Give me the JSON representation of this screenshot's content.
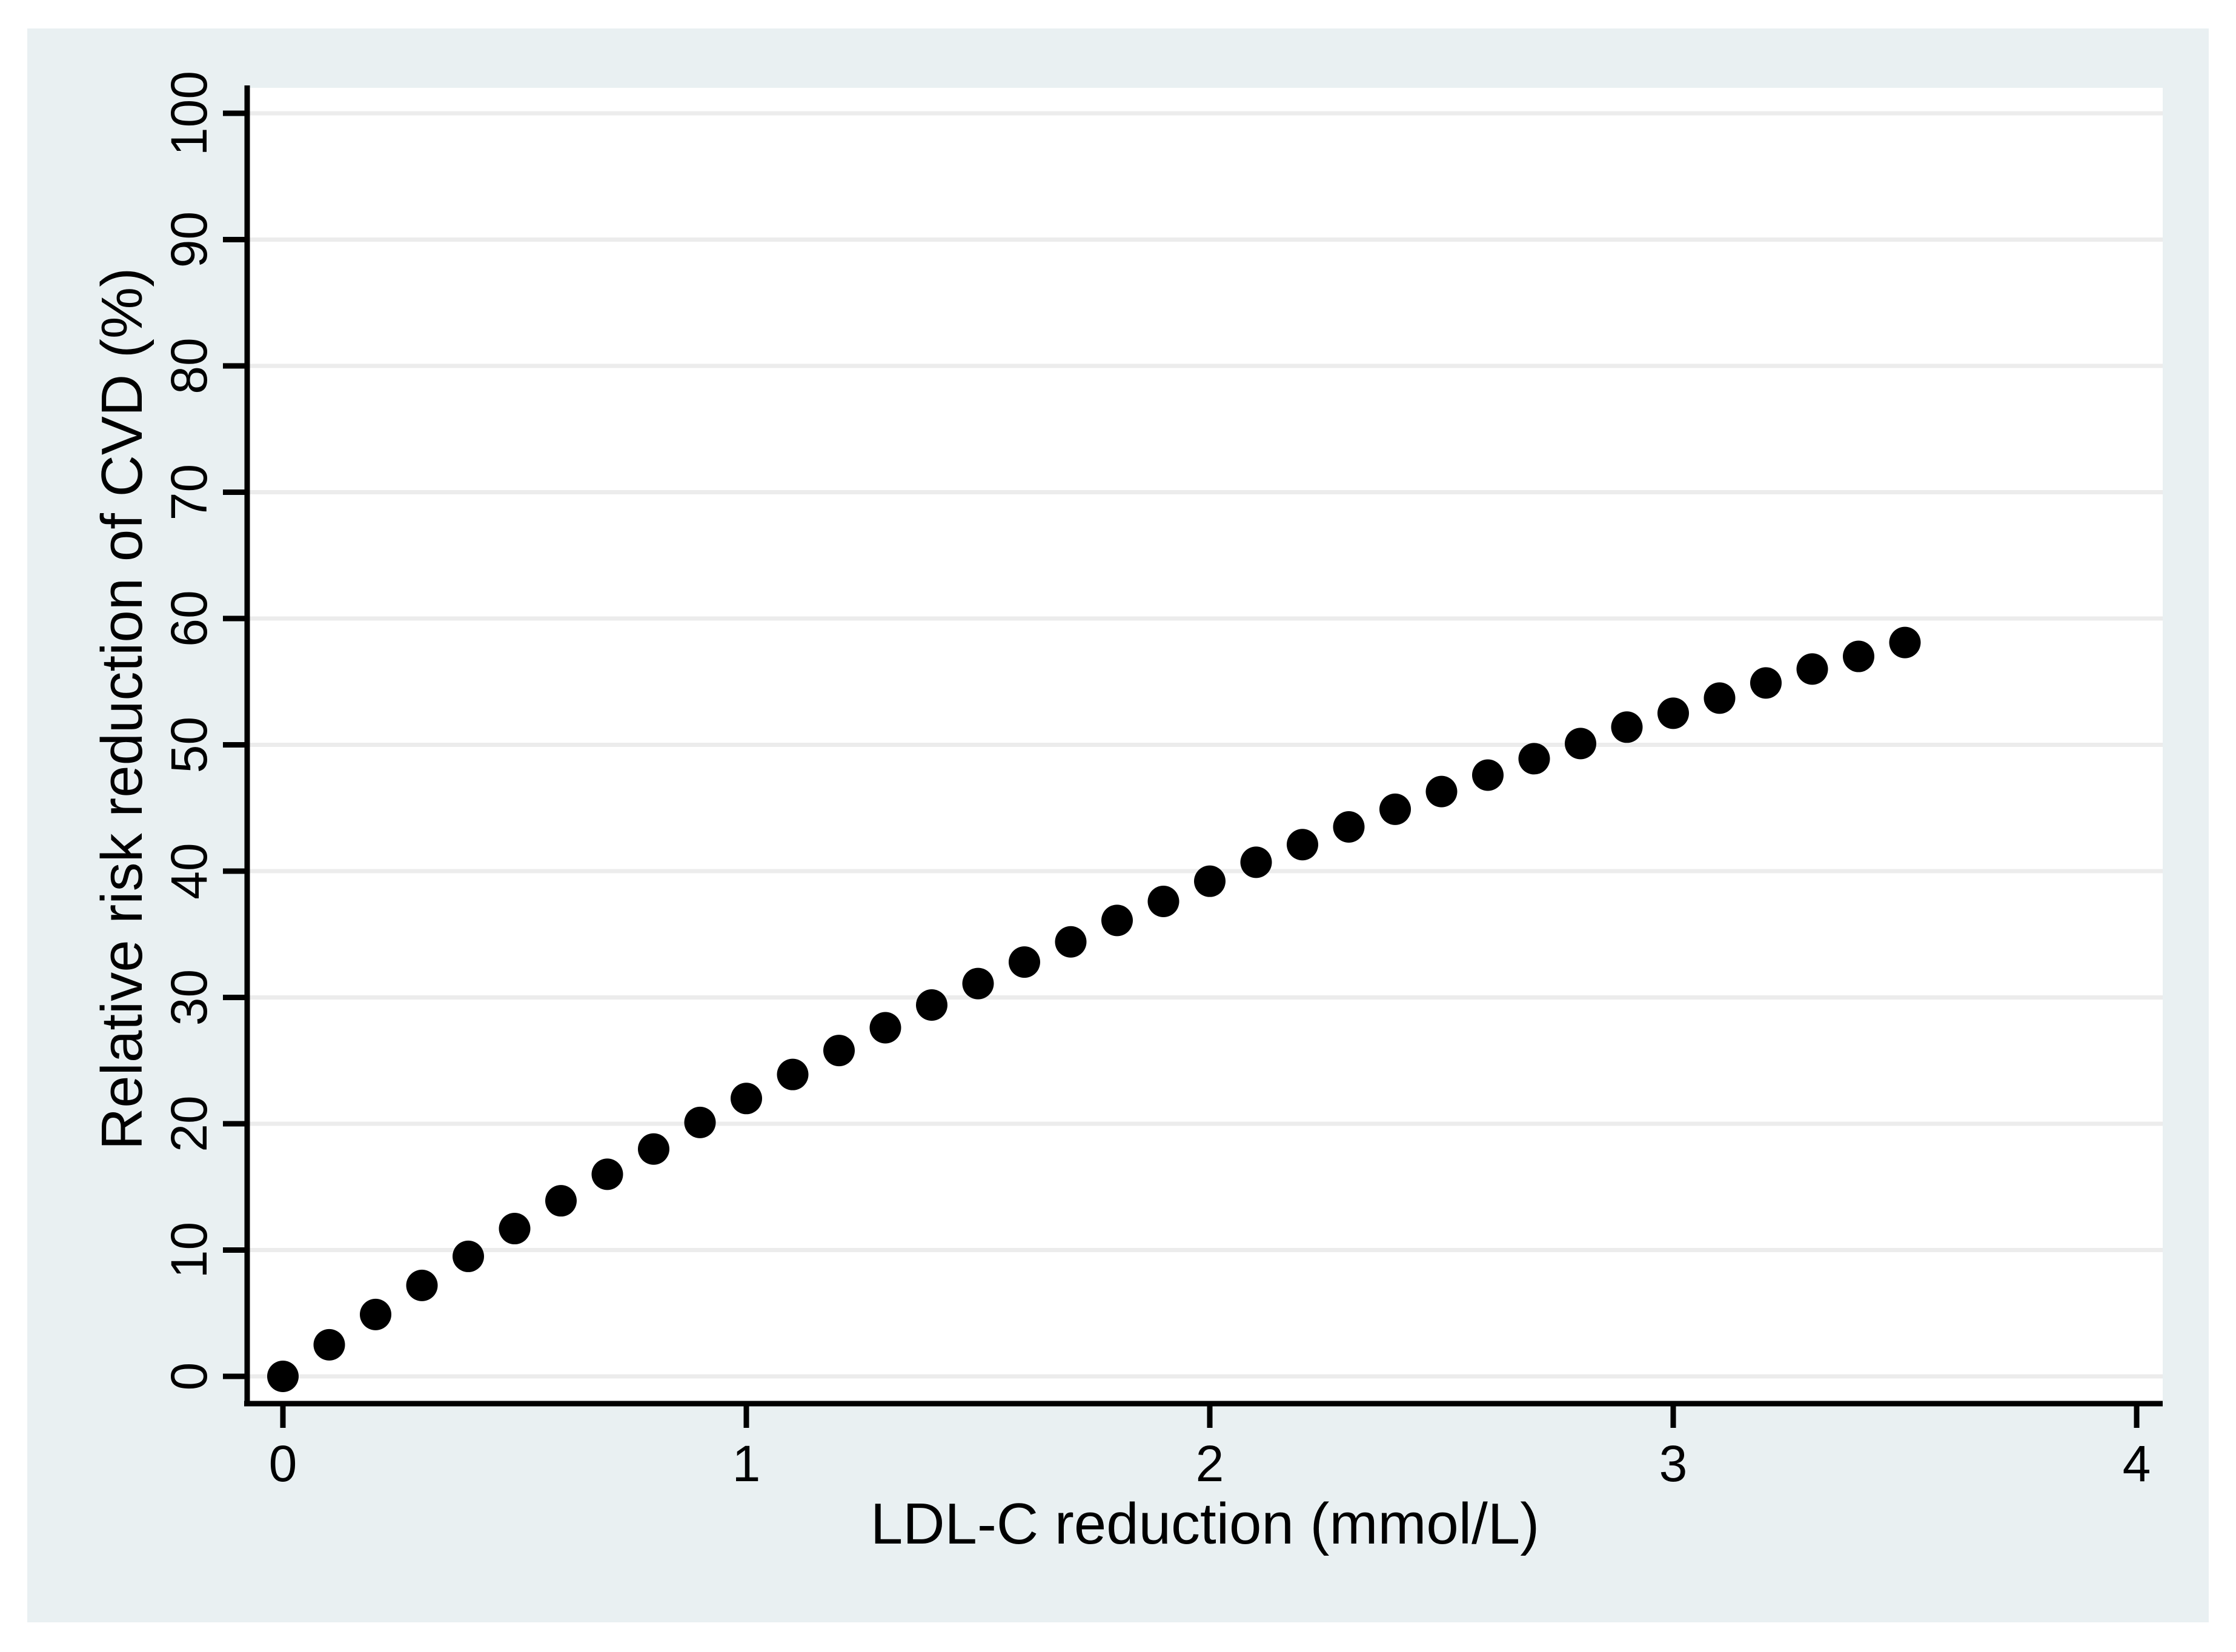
{
  "colors": {
    "page_background": "#ffffff",
    "graph_background": "#e9f0f2",
    "plot_background": "#ffffff",
    "gridline": "#ececec",
    "axis": "#000000",
    "marker": "#000000",
    "text": "#000000"
  },
  "chart_data": {
    "type": "scatter",
    "xlabel": "LDL-C reduction (mmol/L)",
    "ylabel": "Relative risk reduction of CVD (%)",
    "x_tick_labels": [
      "0",
      "1",
      "2",
      "3",
      "4"
    ],
    "x_ticks": [
      0,
      1,
      2,
      3,
      4
    ],
    "y_tick_labels": [
      "0",
      "10",
      "20",
      "30",
      "40",
      "50",
      "60",
      "70",
      "80",
      "90",
      "100"
    ],
    "y_ticks": [
      0,
      10,
      20,
      30,
      40,
      50,
      60,
      70,
      80,
      90,
      100
    ],
    "xlim": [
      -0.08,
      4.06
    ],
    "ylim": [
      -2.2,
      102.0
    ],
    "grid": "horizontal",
    "legend": "none",
    "marker": "filled-circle",
    "x": [
      0.0,
      0.1,
      0.2,
      0.3,
      0.4,
      0.5,
      0.6,
      0.7,
      0.8,
      0.9,
      1.0,
      1.1,
      1.2,
      1.3,
      1.4,
      1.5,
      1.6,
      1.7,
      1.8,
      1.9,
      2.0,
      2.1,
      2.2,
      2.3,
      2.4,
      2.5,
      2.6,
      2.7,
      2.8,
      2.9,
      3.0,
      3.1,
      3.2,
      3.3,
      3.4,
      3.5
    ],
    "y": [
      0.0,
      2.5,
      4.9,
      7.2,
      9.5,
      11.7,
      13.9,
      16.0,
      18.0,
      20.1,
      22.0,
      23.9,
      25.8,
      27.6,
      29.4,
      31.1,
      32.8,
      34.4,
      36.1,
      37.6,
      39.2,
      40.7,
      42.1,
      43.5,
      44.9,
      46.3,
      47.6,
      48.9,
      50.1,
      51.4,
      52.5,
      53.7,
      54.9,
      56.0,
      57.0,
      58.1
    ]
  }
}
